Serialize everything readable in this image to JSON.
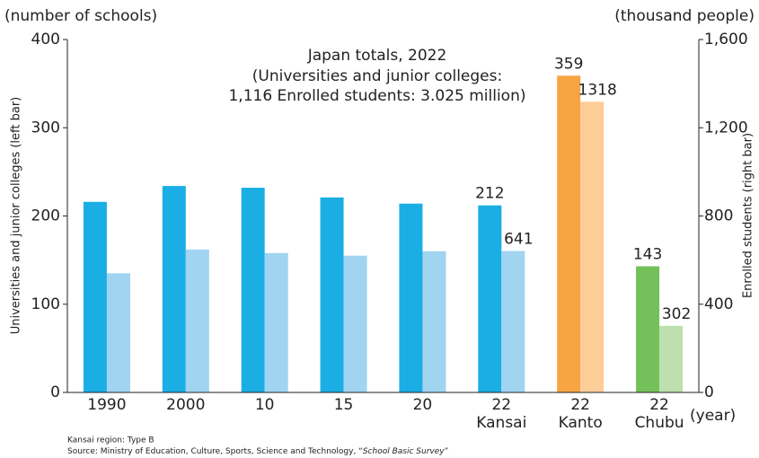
{
  "chart_data": {
    "type": "bar",
    "left_unit": "(number of schools)",
    "right_unit": "(thousand people)",
    "ylabel": "Universities and junior colleges (left bar)",
    "y2label": "Enrolled students (right bar)",
    "xunit": "(year)",
    "annotation": [
      "Japan totals, 2022",
      "(Universities and junior colleges:",
      "1,116 Enrolled students: 3.025 million)"
    ],
    "categories": [
      "1990",
      "2000",
      "10",
      "15",
      "20",
      "22",
      "22",
      "22"
    ],
    "category_sublabels": [
      null,
      null,
      null,
      null,
      null,
      "Kansai",
      "Kanto",
      "Chubu"
    ],
    "show_value_labels": [
      false,
      false,
      false,
      false,
      false,
      true,
      true,
      true
    ],
    "series": [
      {
        "name": "Universities and junior colleges",
        "axis": "y",
        "colors": [
          "#1aaee5",
          "#1aaee5",
          "#1aaee5",
          "#1aaee5",
          "#1aaee5",
          "#1aaee5",
          "#f7a443",
          "#74c05b"
        ],
        "values": [
          216,
          234,
          232,
          221,
          214,
          212,
          359,
          143
        ]
      },
      {
        "name": "Enrolled students",
        "axis": "y2",
        "colors": [
          "#a0d4f1",
          "#a0d4f1",
          "#a0d4f1",
          "#a0d4f1",
          "#a0d4f1",
          "#a0d4f1",
          "#fdcd98",
          "#bde0ad"
        ],
        "values": [
          540,
          648,
          632,
          620,
          640,
          641,
          1318,
          302
        ]
      }
    ],
    "ylim": [
      0,
      400
    ],
    "yticks": [
      0,
      100,
      200,
      300,
      400
    ],
    "y2lim": [
      0,
      1600
    ],
    "y2ticks": [
      0,
      400,
      800,
      {
        "value": 1200,
        "label": "1,200"
      },
      {
        "value": 1600,
        "label": "1,600"
      }
    ],
    "footnotes": {
      "note": "Kansai region: Type B",
      "source_prefix": "Source: Ministry of Education, Culture, Sports, Science and Technology, “",
      "source_title": "School Basic Survey",
      "source_suffix": "”"
    }
  }
}
